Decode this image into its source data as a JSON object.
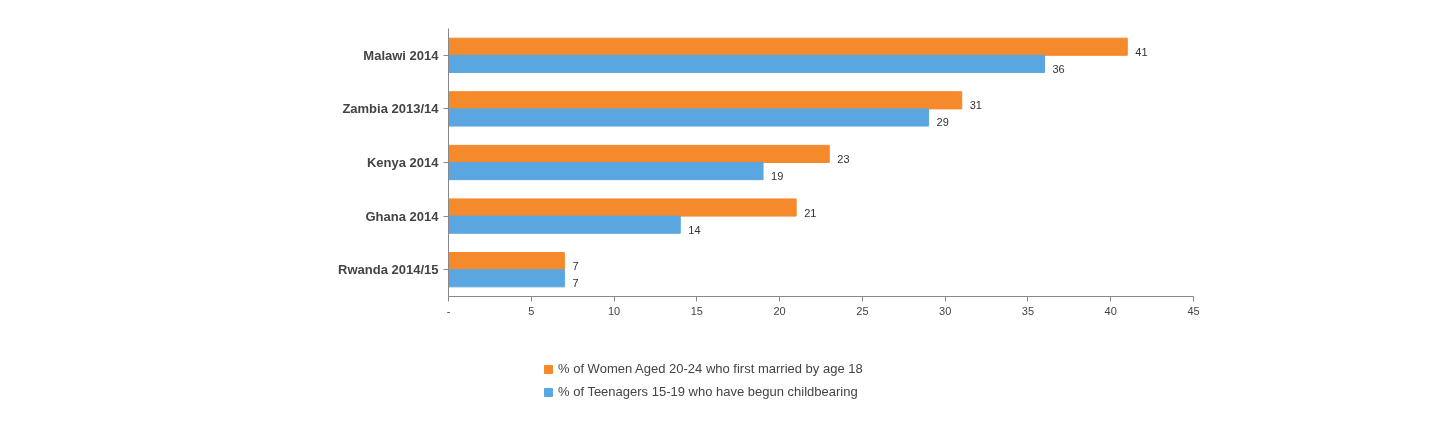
{
  "chart_data": {
    "type": "bar",
    "orientation": "horizontal",
    "categories": [
      "Malawi 2014",
      "Zambia 2013/14",
      "Kenya 2014",
      "Ghana 2014",
      "Rwanda 2014/15"
    ],
    "series": [
      {
        "name": "% of Women Aged 20-24 who first married by age 18",
        "color": "#f58a2c",
        "values": [
          41,
          31,
          23,
          21,
          7
        ]
      },
      {
        "name": "% of Teenagers 15-19 who have begun childbearing",
        "color": "#5aa6e0",
        "values": [
          36,
          29,
          19,
          14,
          7
        ]
      }
    ],
    "xlim": [
      0,
      45
    ],
    "xticks": [
      {
        "value": 0,
        "label": "-"
      },
      5,
      10,
      15,
      20,
      25,
      30,
      35,
      40,
      45
    ],
    "data_labels": true,
    "grid": false,
    "legend": "bottom"
  }
}
